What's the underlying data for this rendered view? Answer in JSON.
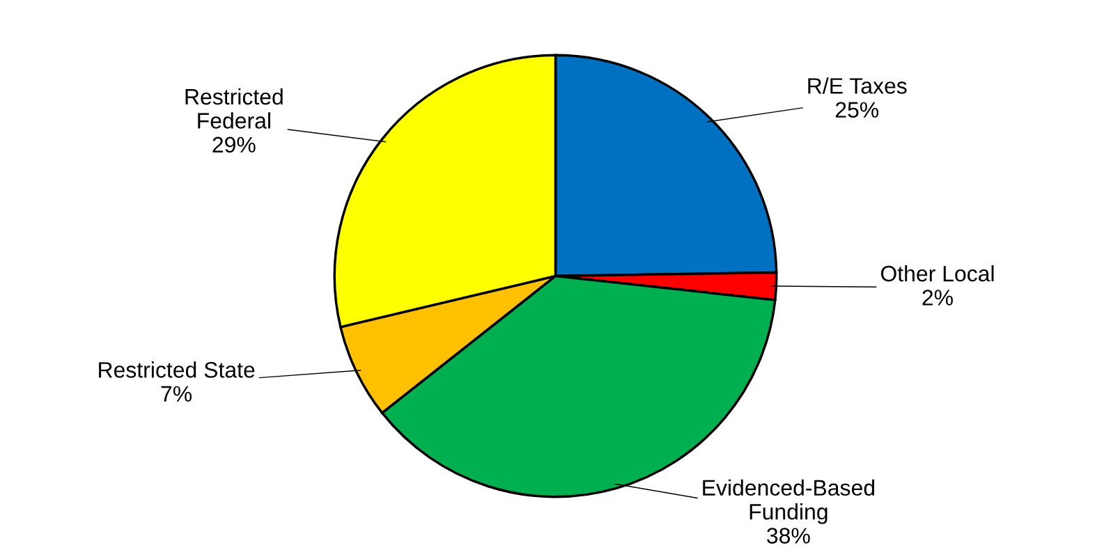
{
  "chart_data": {
    "type": "pie",
    "categories": [
      "R/E Taxes",
      "Other Local",
      "Evidenced-Based\nFunding",
      "Restricted State",
      "Restricted\nFederal"
    ],
    "values": [
      25,
      2,
      38,
      7,
      29
    ],
    "colors": [
      "#0070c0",
      "#ff0000",
      "#00b050",
      "#ffc000",
      "#ffff00"
    ],
    "value_labels": [
      "25%",
      "2%",
      "38%",
      "7%",
      "29%"
    ]
  }
}
